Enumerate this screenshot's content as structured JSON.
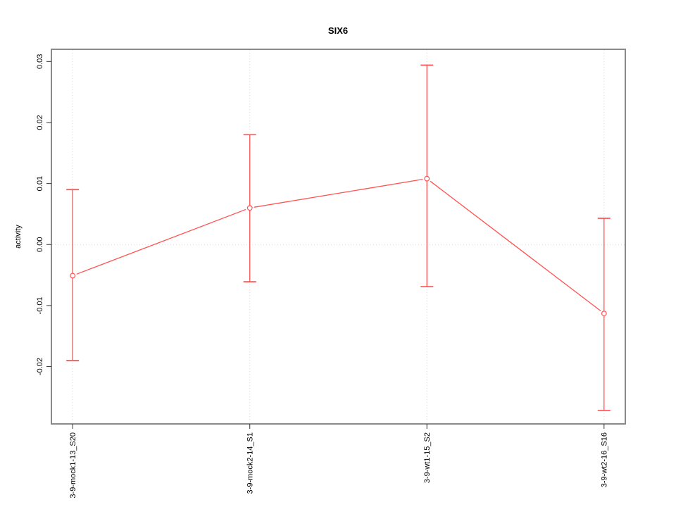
{
  "chart_data": {
    "type": "line",
    "title": "SIX6",
    "xlabel": "",
    "ylabel": "activity",
    "categories": [
      "3-9-mock1-13_S20",
      "3-9-mock2-14_S1",
      "3-9-wt1-15_S2",
      "3-9-wt2-16_S16"
    ],
    "values": [
      -0.0051,
      0.006,
      0.0108,
      -0.0113
    ],
    "error_low": [
      -0.019,
      -0.0061,
      -0.0069,
      -0.0272
    ],
    "error_high": [
      0.009,
      0.018,
      0.0294,
      0.0043
    ],
    "yticks": [
      0.03,
      0.02,
      0.01,
      0,
      -0.01,
      -0.02
    ],
    "ytick_labels": [
      "0.03",
      "0.02",
      "0.01",
      "0.00",
      "-0.01",
      "-0.02"
    ],
    "ylim": [
      -0.0294,
      0.032
    ],
    "grid": {
      "vertical_at_categories": true,
      "horizontal_at_zero": true
    },
    "legend": "none",
    "marker": "open-circle",
    "colors": {
      "series": "#ff5252",
      "axis_box": "#8a8a8a",
      "ticks": "#333333",
      "grid": "#d8d8d8",
      "text": "#000000",
      "background": "#ffffff"
    }
  }
}
